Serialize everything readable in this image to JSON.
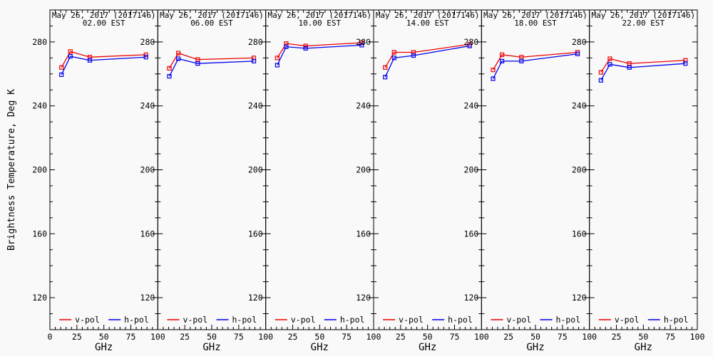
{
  "page": {
    "background_color": "#f9f9f9",
    "axis_color": "#000000"
  },
  "chart_data": {
    "type": "line",
    "xlabel": "GHz",
    "ylabel": "Brightness Temperature, Deg K",
    "xlim": [
      0,
      100
    ],
    "ylim": [
      100,
      300
    ],
    "xticks": [
      0,
      25,
      50,
      75,
      100
    ],
    "yticks": [
      120,
      160,
      200,
      240,
      280
    ],
    "x_minor_step": 5,
    "y_minor_step": 10,
    "grid": false,
    "legend_position": "bottom-inside-each-panel",
    "frequencies_ghz": [
      10.7,
      19,
      37,
      89
    ],
    "legend": [
      {
        "label": "v-pol",
        "color": "#ee0000"
      },
      {
        "label": "h-pol",
        "color": "#0000ee"
      }
    ],
    "panels": [
      {
        "title": "May 26, 2017 (2017146)",
        "subtitle": "02.00 EST",
        "series": [
          {
            "name": "v-pol",
            "color": "#ee0000",
            "values": [
              264,
              274,
              270.5,
              272
            ]
          },
          {
            "name": "h-pol",
            "color": "#0000ee",
            "values": [
              259.5,
              271,
              268.5,
              270.5
            ]
          }
        ]
      },
      {
        "title": "May 26, 2017 (2017146)",
        "subtitle": "06.00 EST",
        "series": [
          {
            "name": "v-pol",
            "color": "#ee0000",
            "values": [
              263.5,
              273,
              269,
              270
            ]
          },
          {
            "name": "h-pol",
            "color": "#0000ee",
            "values": [
              258.5,
              269.5,
              266.5,
              268
            ]
          }
        ]
      },
      {
        "title": "May 26, 2017 (2017146)",
        "subtitle": "10.00 EST",
        "series": [
          {
            "name": "v-pol",
            "color": "#ee0000",
            "values": [
              270,
              279,
              277.5,
              279.5
            ]
          },
          {
            "name": "h-pol",
            "color": "#0000ee",
            "values": [
              265.5,
              277,
              276,
              278
            ]
          }
        ]
      },
      {
        "title": "May 26, 2017 (2017146)",
        "subtitle": "14.00 EST",
        "series": [
          {
            "name": "v-pol",
            "color": "#ee0000",
            "values": [
              264,
              273.5,
              273.5,
              278.5
            ]
          },
          {
            "name": "h-pol",
            "color": "#0000ee",
            "values": [
              258,
              270,
              271.5,
              277.5
            ]
          }
        ]
      },
      {
        "title": "May 26, 2017 (2017146)",
        "subtitle": "18.00 EST",
        "series": [
          {
            "name": "v-pol",
            "color": "#ee0000",
            "values": [
              262.5,
              272,
              270.5,
              273.5
            ]
          },
          {
            "name": "h-pol",
            "color": "#0000ee",
            "values": [
              257,
              268,
              268,
              272.5
            ]
          }
        ]
      },
      {
        "title": "May 26, 2017 (2017146)",
        "subtitle": "22.00 EST",
        "series": [
          {
            "name": "v-pol",
            "color": "#ee0000",
            "values": [
              261,
              269.5,
              266.5,
              268.5
            ]
          },
          {
            "name": "h-pol",
            "color": "#0000ee",
            "values": [
              256,
              266,
              264,
              266.5
            ]
          }
        ]
      }
    ]
  }
}
